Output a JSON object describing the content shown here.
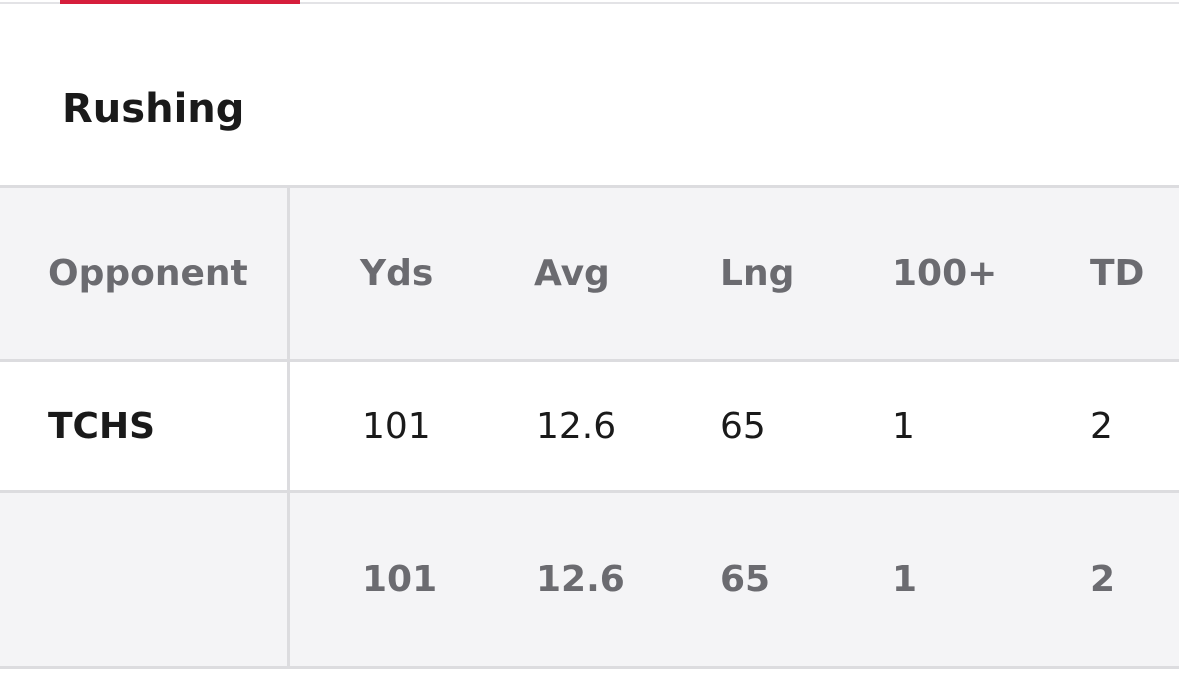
{
  "section": {
    "title": "Rushing"
  },
  "table": {
    "columns": [
      "Opponent",
      "Yds",
      "Avg",
      "Lng",
      "100+",
      "TD"
    ],
    "rows": [
      {
        "opponent": "TCHS",
        "yds": "101",
        "avg": "12.6",
        "lng": "65",
        "hundred_plus": "1",
        "td": "2"
      }
    ],
    "totals": {
      "opponent": "",
      "yds": "101",
      "avg": "12.6",
      "lng": "65",
      "hundred_plus": "1",
      "td": "2"
    }
  },
  "colors": {
    "tab_indicator": "#d61e3c",
    "header_bg": "#f4f4f6",
    "divider": "#dcdcdf",
    "muted_text": "#6b6b70",
    "primary_text": "#1a1a1a"
  }
}
